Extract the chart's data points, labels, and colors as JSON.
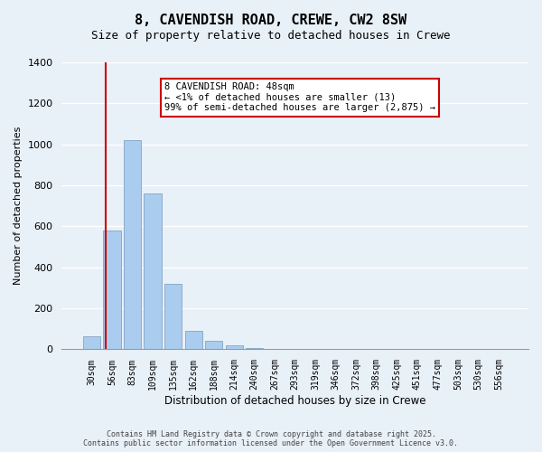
{
  "title": "8, CAVENDISH ROAD, CREWE, CW2 8SW",
  "subtitle": "Size of property relative to detached houses in Crewe",
  "xlabel": "Distribution of detached houses by size in Crewe",
  "ylabel": "Number of detached properties",
  "bar_labels": [
    "30sqm",
    "56sqm",
    "83sqm",
    "109sqm",
    "135sqm",
    "162sqm",
    "188sqm",
    "214sqm",
    "240sqm",
    "267sqm",
    "293sqm",
    "319sqm",
    "346sqm",
    "372sqm",
    "398sqm",
    "425sqm",
    "451sqm",
    "477sqm",
    "503sqm",
    "530sqm",
    "556sqm"
  ],
  "bar_values": [
    65,
    580,
    1020,
    760,
    320,
    90,
    40,
    18,
    5,
    0,
    0,
    0,
    0,
    0,
    0,
    0,
    0,
    0,
    0,
    0,
    0
  ],
  "bar_color": "#aaccee",
  "bar_edge_color": "#7799bb",
  "ylim": [
    0,
    1400
  ],
  "yticks": [
    0,
    200,
    400,
    600,
    800,
    1000,
    1200,
    1400
  ],
  "annotation_title": "8 CAVENDISH ROAD: 48sqm",
  "annotation_line1": "← <1% of detached houses are smaller (13)",
  "annotation_line2": "99% of semi-detached houses are larger (2,875) →",
  "annotation_box_color": "#ffffff",
  "annotation_box_edge": "#cc0000",
  "vline_color": "#cc0000",
  "footer1": "Contains HM Land Registry data © Crown copyright and database right 2025.",
  "footer2": "Contains public sector information licensed under the Open Government Licence v3.0.",
  "background_color": "#e8f0f8",
  "grid_color": "#ffffff"
}
